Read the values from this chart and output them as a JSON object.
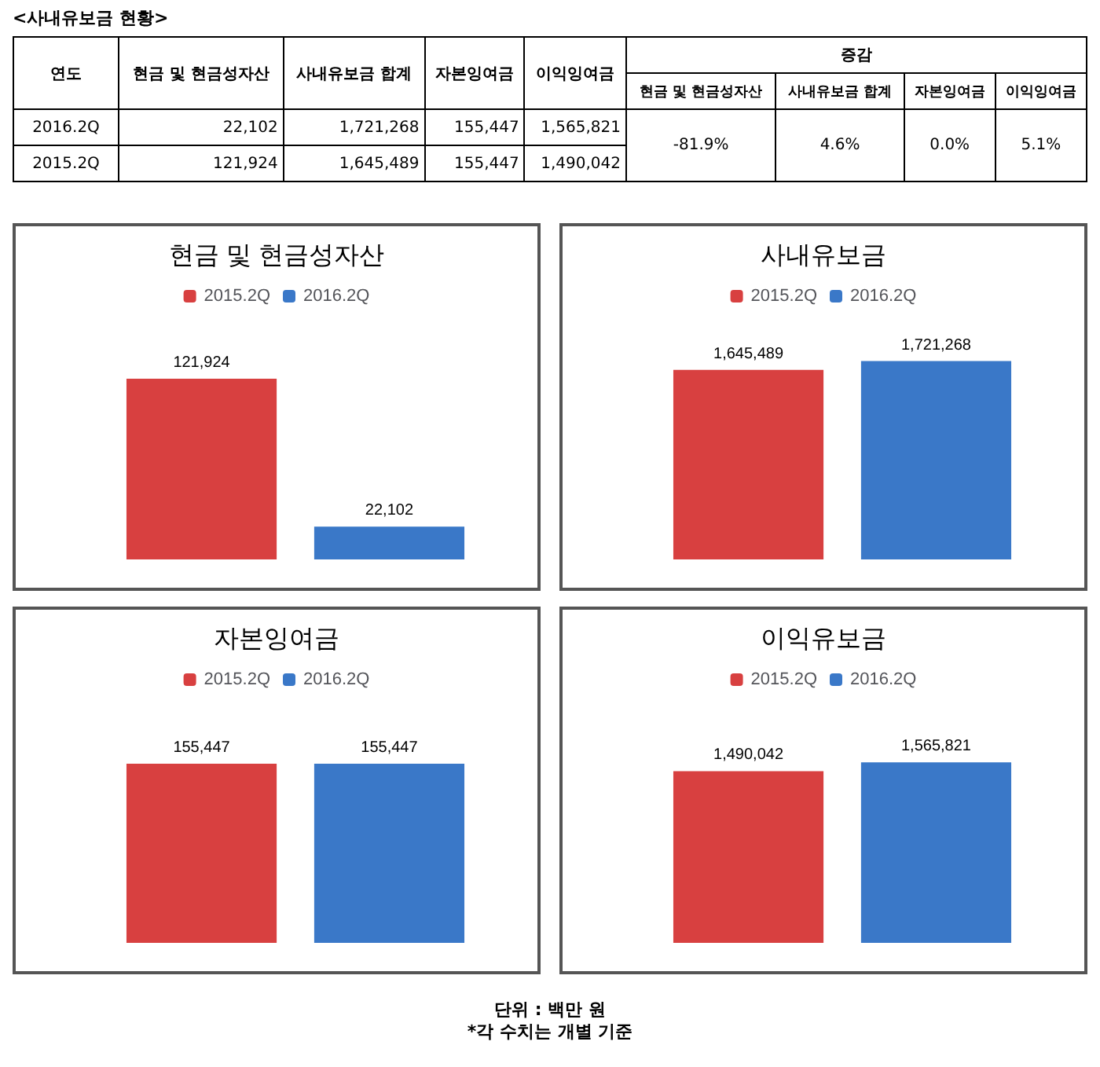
{
  "chart_data": [
    {
      "type": "other",
      "title": "<사내유보금 현황>",
      "annotations": [
        "연도",
        "증감"
      ],
      "categories": [
        "현금 및 현금성자산",
        "사내유보금 합계",
        "자본잉여금",
        "이익잉여금",
        "현금 및 현금성자산",
        "사내유보금 합계",
        "자본잉여금",
        "이익잉여금"
      ],
      "y_categories": [
        "2016.2Q",
        "2015.2Q"
      ],
      "cell_labels": [
        [
          "22,102",
          "1,721,268",
          "155,447",
          "1,565,821",
          "-81.9%",
          "4.6%",
          "0.0%",
          "5.1%"
        ],
        [
          "121,924",
          "1,645,489",
          "155,447",
          "1,490,042",
          null,
          null,
          null,
          null
        ]
      ]
    },
    {
      "type": "bar",
      "title": "현금 및 현금성자산",
      "categories": [
        null
      ],
      "legend": "top",
      "series": [
        {
          "name": "2015.2Q",
          "color": "#d84040",
          "values": [
            121924
          ],
          "value_labels": [
            "121,924"
          ]
        },
        {
          "name": "2016.2Q",
          "color": "#3a78c8",
          "values": [
            22102
          ],
          "value_labels": [
            "22,102"
          ]
        }
      ]
    },
    {
      "type": "bar",
      "title": "사내유보금",
      "categories": [
        null
      ],
      "legend": "top",
      "series": [
        {
          "name": "2015.2Q",
          "color": "#d84040",
          "values": [
            1645489
          ],
          "value_labels": [
            "1,645,489"
          ]
        },
        {
          "name": "2016.2Q",
          "color": "#3a78c8",
          "values": [
            1721268
          ],
          "value_labels": [
            "1,721,268"
          ]
        }
      ]
    },
    {
      "type": "bar",
      "title": "자본잉여금",
      "categories": [
        null
      ],
      "legend": "top",
      "series": [
        {
          "name": "2015.2Q",
          "color": "#d84040",
          "values": [
            155447
          ],
          "value_labels": [
            "155,447"
          ]
        },
        {
          "name": "2016.2Q",
          "color": "#3a78c8",
          "values": [
            155447
          ],
          "value_labels": [
            "155,447"
          ]
        }
      ]
    },
    {
      "type": "bar",
      "title": "이익유보금",
      "categories": [
        null
      ],
      "legend": "top",
      "annotations": [
        "단위 : 백만 원",
        "*각 수치는 개별 기준"
      ],
      "series": [
        {
          "name": "2015.2Q",
          "color": "#d84040",
          "values": [
            1490042
          ],
          "value_labels": [
            "1,490,042"
          ]
        },
        {
          "name": "2016.2Q",
          "color": "#3a78c8",
          "values": [
            1565821
          ],
          "value_labels": [
            "1,565,821"
          ]
        }
      ]
    }
  ]
}
